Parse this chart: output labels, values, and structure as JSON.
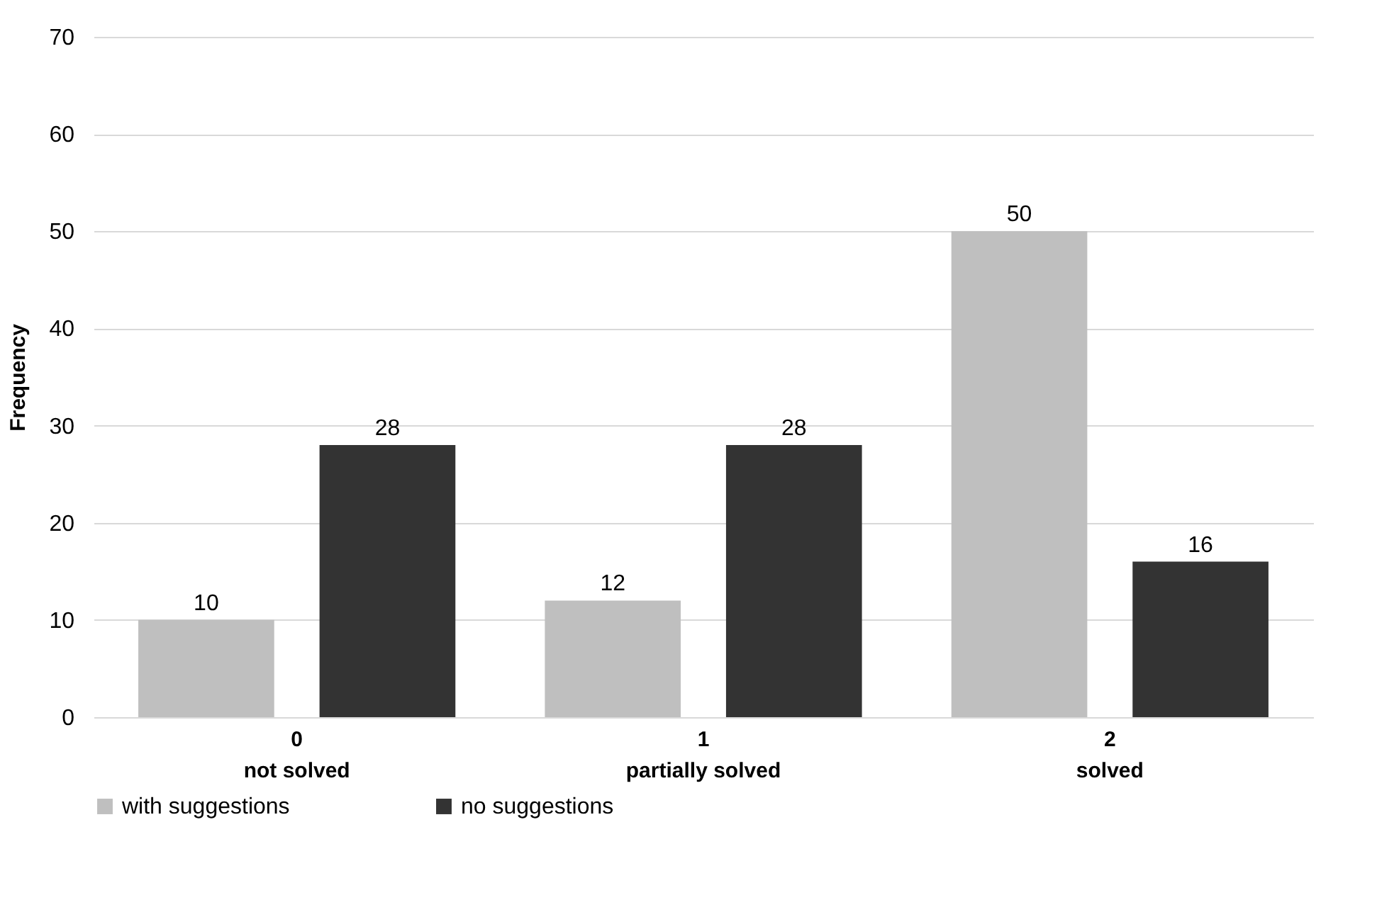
{
  "chart_data": {
    "type": "bar",
    "ylabel": "Frequency",
    "categories": [
      "0\nnot solved",
      "1\npartially solved",
      "2\nsolved"
    ],
    "series": [
      {
        "name": "with suggestions",
        "color": "#bfbfbf",
        "values": [
          10,
          12,
          50
        ]
      },
      {
        "name": "no suggestions",
        "color": "#333333",
        "values": [
          28,
          28,
          16
        ]
      }
    ],
    "ylim": [
      0,
      70
    ],
    "yticks": [
      0,
      10,
      20,
      30,
      40,
      50,
      60,
      70
    ],
    "grid": "y",
    "legend": "bottom",
    "data_labels": true
  }
}
